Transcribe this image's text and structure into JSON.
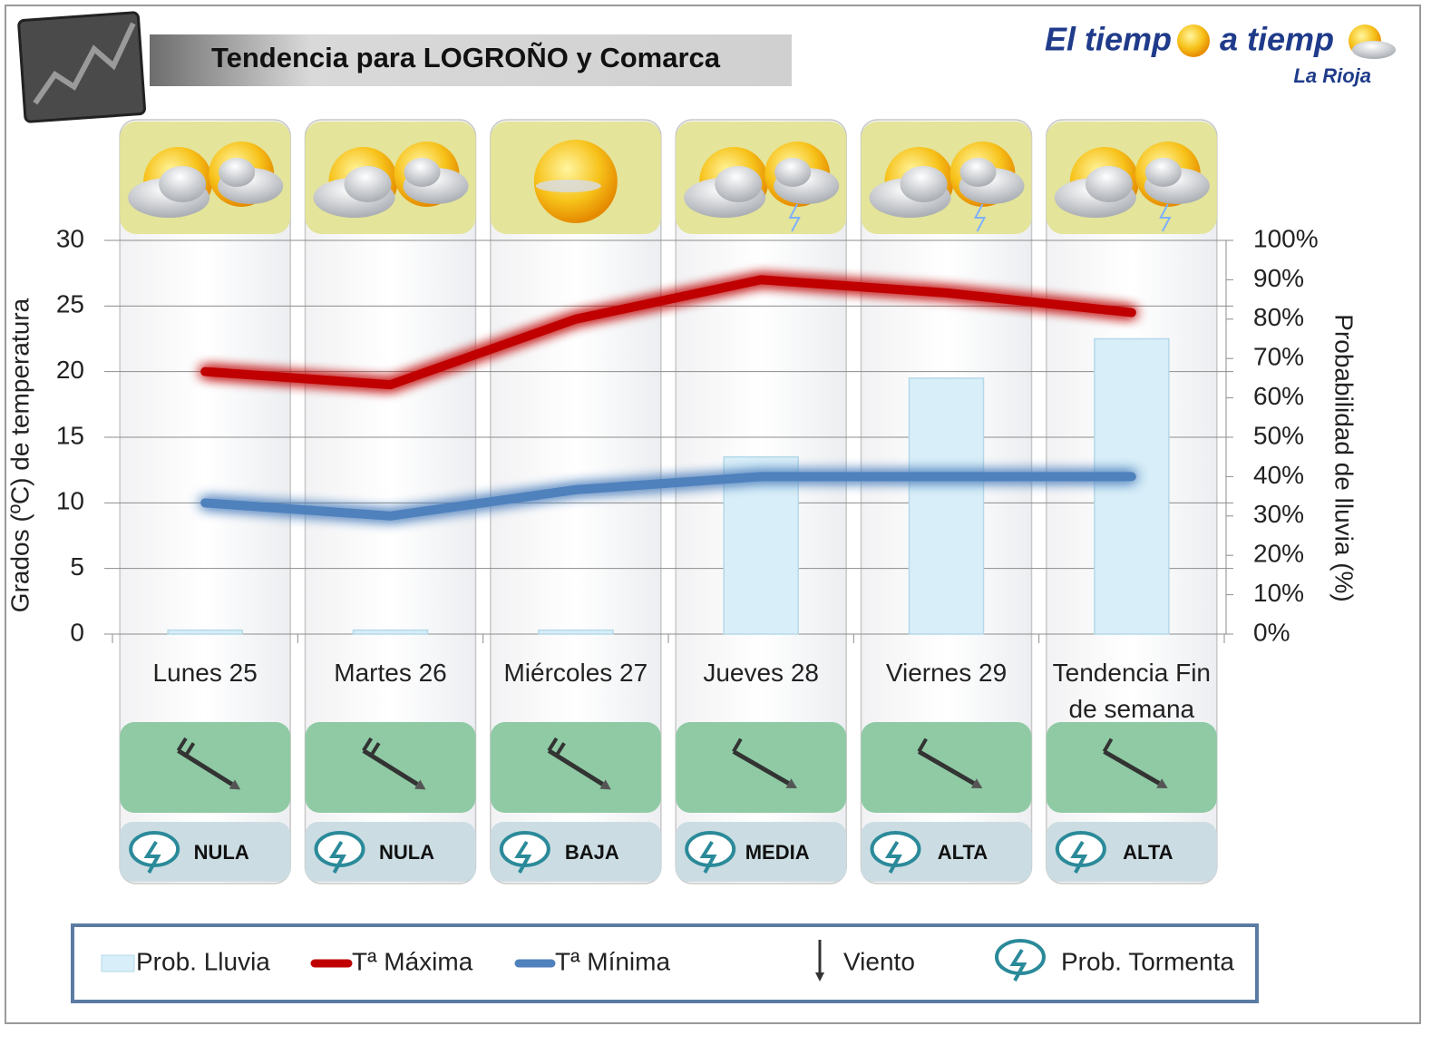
{
  "title": "Tendencia para LOGROÑO y Comarca",
  "logo": {
    "parts": [
      "El tiemp",
      "a tiemp"
    ],
    "region": "La Rioja"
  },
  "storm_probability": [
    "NULA",
    "NULA",
    "BAJA",
    "MEDIA",
    "ALTA",
    "ALTA"
  ],
  "legend_extra": [
    "Viento",
    "Prob. Tormenta"
  ],
  "chart_data": {
    "type": "combo",
    "y_label": "Grados (ºC) de temperatura",
    "y2_label": "Probabilidad de lluvia (%)",
    "categories": [
      "Lunes 25",
      "Martes 26",
      "Miércoles 27",
      "Jueves 28",
      "Viernes 29",
      "Tendencia Fin de semana"
    ],
    "series": [
      {
        "name": "Prob. Lluvia",
        "type": "bar",
        "axis": "y2",
        "color": "#d8eef8",
        "values": [
          1,
          1,
          1,
          45,
          65,
          75
        ]
      },
      {
        "name": "Tª Máxima",
        "type": "line",
        "color": "#c00000",
        "values": [
          20,
          19,
          24,
          27,
          26,
          24.5
        ]
      },
      {
        "name": "Tª Mínima",
        "type": "line",
        "color": "#4f81bd",
        "values": [
          10,
          9,
          11,
          12,
          12,
          12
        ]
      }
    ],
    "ylim": [
      0,
      30
    ],
    "yticks": [
      0,
      5,
      10,
      15,
      20,
      25,
      30
    ],
    "y2lim": [
      0,
      100
    ],
    "y2ticks": [
      {
        "value": 0,
        "label": "0%"
      },
      {
        "value": 10,
        "label": "10%"
      },
      {
        "value": 20,
        "label": "20%"
      },
      {
        "value": 30,
        "label": "30%"
      },
      {
        "value": 40,
        "label": "40%"
      },
      {
        "value": 50,
        "label": "50%"
      },
      {
        "value": 60,
        "label": "60%"
      },
      {
        "value": 70,
        "label": "70%"
      },
      {
        "value": 80,
        "label": "80%"
      },
      {
        "value": 90,
        "label": "90%"
      },
      {
        "value": 100,
        "label": "100%"
      }
    ],
    "grid": true
  }
}
